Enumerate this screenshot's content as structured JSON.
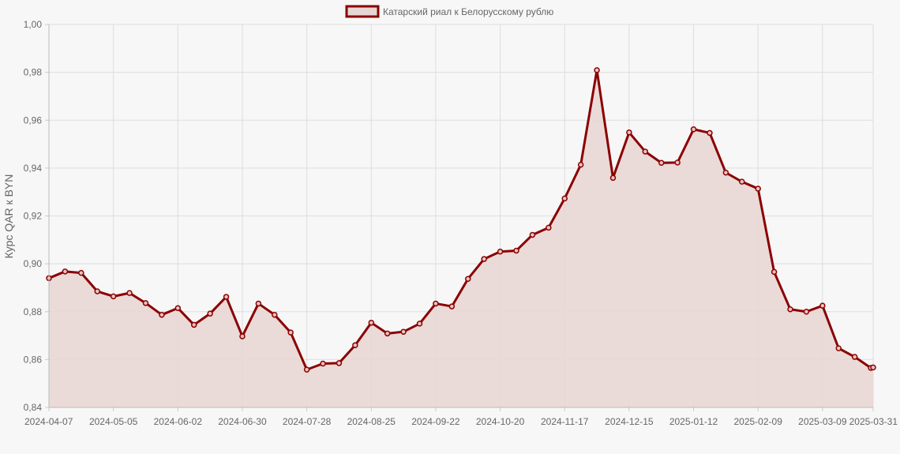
{
  "chart_data": {
    "type": "area",
    "title": "",
    "xlabel": "",
    "ylabel": "Курс QAR к BYN",
    "ylim": [
      0.84,
      1.0
    ],
    "y_ticks": [
      "0,84",
      "0,86",
      "0,88",
      "0,90",
      "0,92",
      "0,94",
      "0,96",
      "0,98",
      "1,00"
    ],
    "x_ticks": [
      "2024-04-07",
      "2024-05-05",
      "2024-06-02",
      "2024-06-30",
      "2024-07-28",
      "2024-08-25",
      "2024-09-22",
      "2024-10-20",
      "2024-11-17",
      "2024-12-15",
      "2025-01-12",
      "2025-02-09",
      "2025-03-09",
      "2025-03-31"
    ],
    "x": [
      "2024-04-07",
      "2024-04-14",
      "2024-04-21",
      "2024-04-28",
      "2024-05-05",
      "2024-05-12",
      "2024-05-19",
      "2024-05-26",
      "2024-06-02",
      "2024-06-09",
      "2024-06-16",
      "2024-06-23",
      "2024-06-30",
      "2024-07-07",
      "2024-07-14",
      "2024-07-21",
      "2024-07-28",
      "2024-08-04",
      "2024-08-11",
      "2024-08-18",
      "2024-08-25",
      "2024-09-01",
      "2024-09-08",
      "2024-09-15",
      "2024-09-22",
      "2024-09-29",
      "2024-10-06",
      "2024-10-13",
      "2024-10-20",
      "2024-10-27",
      "2024-11-03",
      "2024-11-10",
      "2024-11-17",
      "2024-11-24",
      "2024-12-01",
      "2024-12-08",
      "2024-12-15",
      "2024-12-22",
      "2024-12-29",
      "2025-01-05",
      "2025-01-12",
      "2025-01-19",
      "2025-01-26",
      "2025-02-02",
      "2025-02-09",
      "2025-02-16",
      "2025-02-23",
      "2025-03-02",
      "2025-03-09",
      "2025-03-16",
      "2025-03-23",
      "2025-03-30",
      "2025-03-31"
    ],
    "series": [
      {
        "name": "Катарский риал к Белорусскому рублю",
        "color": "#8b0000",
        "fill": "#e8d6d4",
        "values": [
          0.894,
          0.8968,
          0.8962,
          0.8885,
          0.8864,
          0.8878,
          0.8836,
          0.8787,
          0.8815,
          0.8745,
          0.8792,
          0.8862,
          0.8697,
          0.8834,
          0.8787,
          0.8713,
          0.8558,
          0.8583,
          0.8585,
          0.866,
          0.8754,
          0.8709,
          0.8716,
          0.875,
          0.8834,
          0.8822,
          0.8937,
          0.902,
          0.9051,
          0.9055,
          0.9121,
          0.9151,
          0.9273,
          0.9414,
          0.9809,
          0.9359,
          0.9549,
          0.9469,
          0.9422,
          0.9423,
          0.9562,
          0.9547,
          0.9381,
          0.9343,
          0.9314,
          0.8966,
          0.881,
          0.88,
          0.8825,
          0.8647,
          0.8611,
          0.8565,
          0.8567
        ]
      }
    ],
    "grid": true,
    "legend_position": "top-center"
  }
}
